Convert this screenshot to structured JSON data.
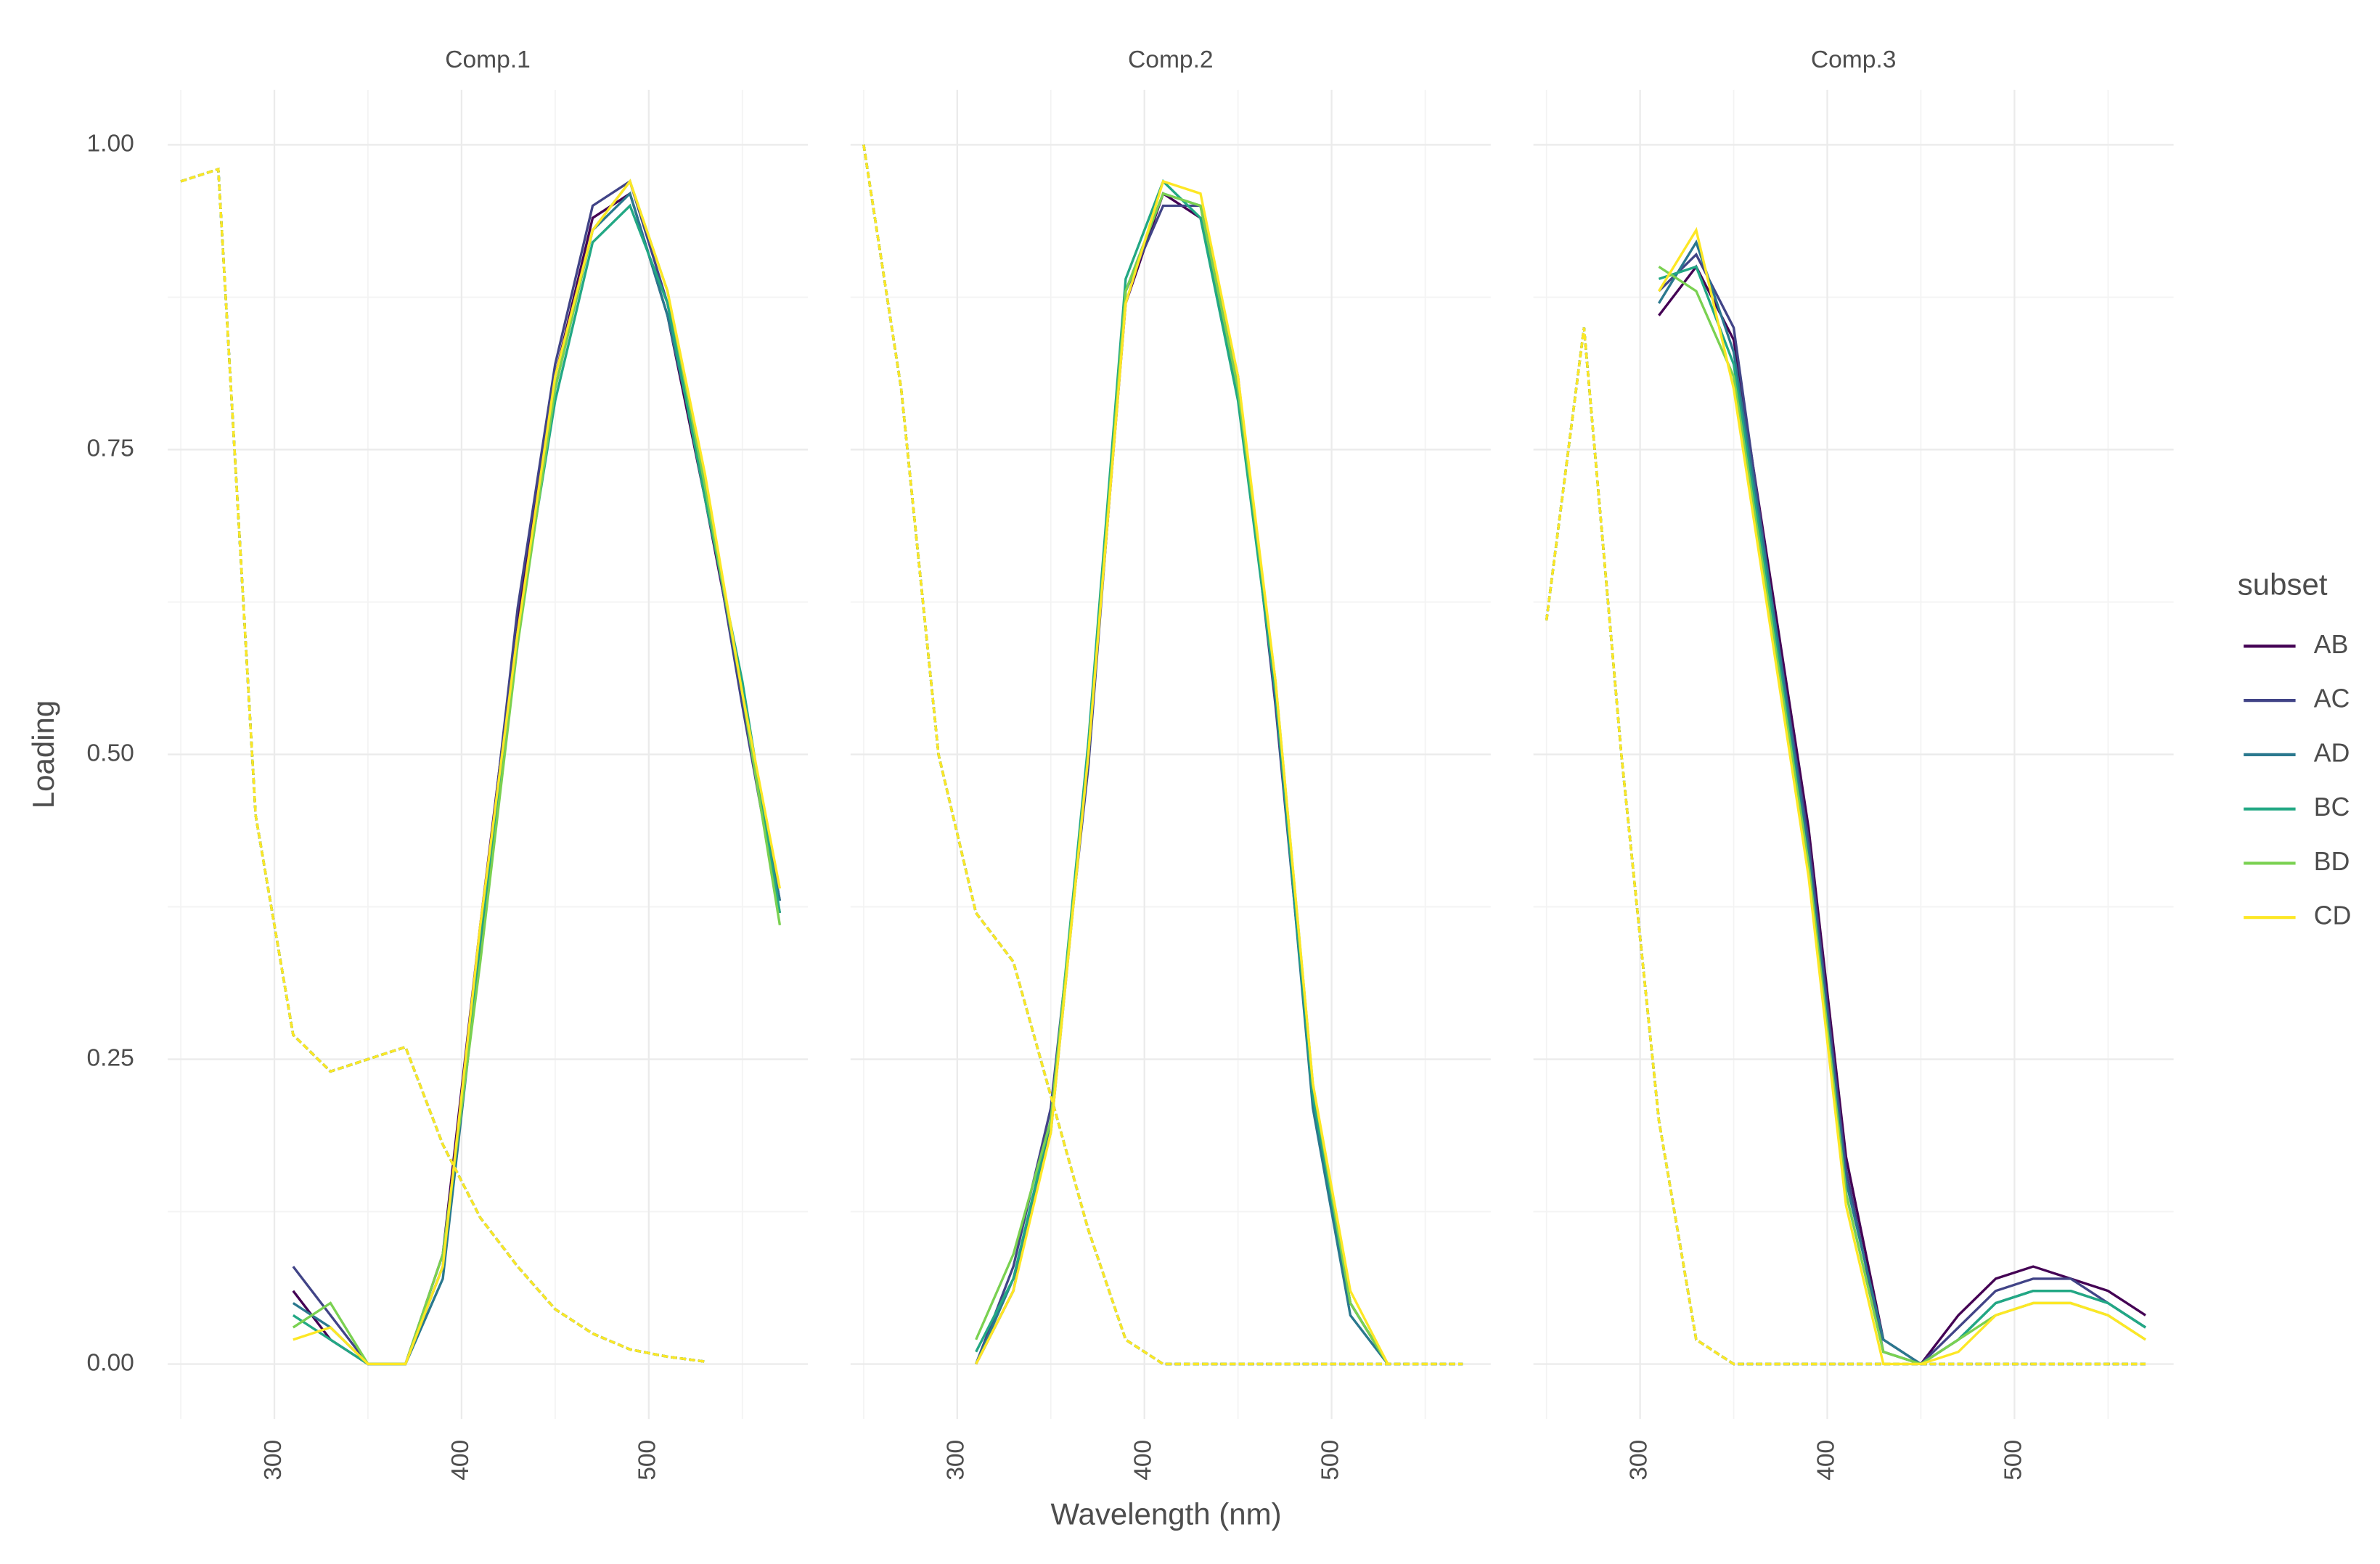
{
  "xlabel": "Wavelength (nm)",
  "ylabel": "Loading",
  "legend_title": "subset",
  "chart_data": [
    {
      "type": "line",
      "title": "Comp.1",
      "x": [
        250,
        270,
        290,
        310,
        330,
        350,
        370,
        390,
        410,
        430,
        450,
        470,
        490,
        510,
        530,
        550,
        570
      ],
      "xlim": [
        243,
        585
      ],
      "xticks": [
        300,
        400,
        500
      ],
      "ylim": [
        -0.045,
        1.045
      ],
      "yticks": [
        {
          "value": 0,
          "label": "0.00"
        },
        {
          "value": 0.25,
          "label": "0.25"
        },
        {
          "value": 0.5,
          "label": "0.50"
        },
        {
          "value": 0.75,
          "label": "0.75"
        },
        {
          "value": 1,
          "label": "1.00"
        }
      ],
      "series": [
        {
          "name": "AB",
          "color": "#440154",
          "values": [
            null,
            null,
            null,
            0.06,
            0.02,
            0,
            0,
            0.09,
            0.36,
            0.61,
            0.81,
            0.94,
            0.96,
            0.86,
            0.71,
            0.55,
            0.38
          ],
          "excitation": [
            0.97,
            0.98,
            0.45,
            0.27,
            0.24,
            0.25,
            0.26,
            0.18,
            0.12,
            0.08,
            0.045,
            0.025,
            0.012,
            0.006,
            0.002,
            null,
            null
          ]
        },
        {
          "name": "AC",
          "color": "#414487",
          "values": [
            null,
            null,
            null,
            0.08,
            0.04,
            0,
            0,
            0.08,
            0.35,
            0.62,
            0.82,
            0.95,
            0.97,
            0.87,
            0.72,
            0.54,
            0.37
          ],
          "excitation": [
            0.97,
            0.98,
            0.45,
            0.27,
            0.24,
            0.25,
            0.26,
            0.18,
            0.12,
            0.08,
            0.045,
            0.025,
            0.012,
            0.006,
            0.002,
            null,
            null
          ]
        },
        {
          "name": "AD",
          "color": "#2A788E",
          "values": [
            null,
            null,
            null,
            0.05,
            0.03,
            0,
            0,
            0.07,
            0.34,
            0.6,
            0.8,
            0.93,
            0.96,
            0.86,
            0.72,
            0.55,
            0.38
          ],
          "excitation": [
            0.97,
            0.98,
            0.45,
            0.27,
            0.24,
            0.25,
            0.26,
            0.18,
            0.12,
            0.08,
            0.045,
            0.025,
            0.012,
            0.006,
            0.002,
            null,
            null
          ]
        },
        {
          "name": "BC",
          "color": "#22A884",
          "values": [
            null,
            null,
            null,
            0.04,
            0.02,
            0,
            0,
            0.08,
            0.35,
            0.6,
            0.79,
            0.92,
            0.95,
            0.87,
            0.71,
            0.56,
            0.37
          ],
          "excitation": [
            0.97,
            0.98,
            0.45,
            0.27,
            0.24,
            0.25,
            0.26,
            0.18,
            0.12,
            0.08,
            0.045,
            0.025,
            0.012,
            0.006,
            0.002,
            null,
            null
          ]
        },
        {
          "name": "BD",
          "color": "#7AD151",
          "values": [
            null,
            null,
            null,
            0.03,
            0.05,
            0,
            0,
            0.09,
            0.33,
            0.59,
            0.8,
            0.93,
            0.97,
            0.88,
            0.72,
            0.55,
            0.36
          ],
          "excitation": [
            0.97,
            0.98,
            0.45,
            0.27,
            0.24,
            0.25,
            0.26,
            0.18,
            0.12,
            0.08,
            0.045,
            0.025,
            0.012,
            0.006,
            0.002,
            null,
            null
          ]
        },
        {
          "name": "CD",
          "color": "#FDE725",
          "values": [
            null,
            null,
            null,
            0.02,
            0.03,
            0,
            0,
            0.08,
            0.36,
            0.6,
            0.81,
            0.93,
            0.97,
            0.88,
            0.73,
            0.55,
            0.39
          ],
          "excitation": [
            0.97,
            0.98,
            0.45,
            0.27,
            0.24,
            0.25,
            0.26,
            0.18,
            0.12,
            0.08,
            0.045,
            0.025,
            0.012,
            0.006,
            0.002,
            null,
            null
          ]
        }
      ]
    },
    {
      "type": "line",
      "title": "Comp.2",
      "x": [
        250,
        270,
        290,
        310,
        330,
        350,
        370,
        390,
        410,
        430,
        450,
        470,
        490,
        510,
        530,
        550,
        570
      ],
      "xlim": [
        243,
        585
      ],
      "xticks": [
        300,
        400,
        500
      ],
      "ylim": [
        -0.045,
        1.045
      ],
      "yticks": [
        {
          "value": 0,
          "label": "0.00"
        },
        {
          "value": 0.25,
          "label": "0.25"
        },
        {
          "value": 0.5,
          "label": "0.50"
        },
        {
          "value": 0.75,
          "label": "0.75"
        },
        {
          "value": 1,
          "label": "1.00"
        }
      ],
      "series": [
        {
          "name": "AB",
          "color": "#440154",
          "values": [
            null,
            null,
            null,
            0,
            0.06,
            0.2,
            0.5,
            0.87,
            0.96,
            0.94,
            0.8,
            0.55,
            0.22,
            0.05,
            0,
            null,
            null
          ],
          "excitation": [
            1,
            0.8,
            0.5,
            0.37,
            0.33,
            0.22,
            0.11,
            0.02,
            0,
            0,
            0,
            0,
            0,
            0,
            0,
            0,
            0
          ]
        },
        {
          "name": "AC",
          "color": "#414487",
          "values": [
            null,
            null,
            null,
            0,
            0.08,
            0.21,
            0.49,
            0.88,
            0.95,
            0.95,
            0.81,
            0.54,
            0.22,
            0.05,
            0,
            null,
            null
          ],
          "excitation": [
            1,
            0.8,
            0.5,
            0.37,
            0.33,
            0.22,
            0.11,
            0.02,
            0,
            0,
            0,
            0,
            0,
            0,
            0,
            0,
            0
          ]
        },
        {
          "name": "AD",
          "color": "#2A788E",
          "values": [
            null,
            null,
            null,
            0,
            0.07,
            0.19,
            0.5,
            0.88,
            0.96,
            0.95,
            0.8,
            0.55,
            0.21,
            0.04,
            0,
            null,
            null
          ],
          "excitation": [
            1,
            0.8,
            0.5,
            0.37,
            0.33,
            0.22,
            0.11,
            0.02,
            0,
            0,
            0,
            0,
            0,
            0,
            0,
            0,
            0
          ]
        },
        {
          "name": "BC",
          "color": "#22A884",
          "values": [
            null,
            null,
            null,
            0.01,
            0.07,
            0.2,
            0.51,
            0.89,
            0.97,
            0.94,
            0.79,
            0.55,
            0.22,
            0.05,
            0,
            null,
            null
          ],
          "excitation": [
            1,
            0.8,
            0.5,
            0.37,
            0.33,
            0.22,
            0.11,
            0.02,
            0,
            0,
            0,
            0,
            0,
            0,
            0,
            0,
            0
          ]
        },
        {
          "name": "BD",
          "color": "#7AD151",
          "values": [
            null,
            null,
            null,
            0.02,
            0.09,
            0.2,
            0.5,
            0.88,
            0.96,
            0.95,
            0.8,
            0.56,
            0.23,
            0.05,
            0,
            null,
            null
          ],
          "excitation": [
            1,
            0.8,
            0.5,
            0.37,
            0.33,
            0.22,
            0.11,
            0.02,
            0,
            0,
            0,
            0,
            0,
            0,
            0,
            0,
            0
          ]
        },
        {
          "name": "CD",
          "color": "#FDE725",
          "values": [
            null,
            null,
            null,
            0,
            0.06,
            0.19,
            0.5,
            0.87,
            0.97,
            0.96,
            0.81,
            0.56,
            0.23,
            0.06,
            0,
            null,
            null
          ],
          "excitation": [
            1,
            0.8,
            0.5,
            0.37,
            0.33,
            0.22,
            0.11,
            0.02,
            0,
            0,
            0,
            0,
            0,
            0,
            0,
            0,
            0
          ]
        }
      ]
    },
    {
      "type": "line",
      "title": "Comp.3",
      "x": [
        250,
        270,
        290,
        310,
        330,
        350,
        370,
        390,
        410,
        430,
        450,
        470,
        490,
        510,
        530,
        550,
        570
      ],
      "xlim": [
        243,
        585
      ],
      "xticks": [
        300,
        400,
        500
      ],
      "ylim": [
        -0.045,
        1.045
      ],
      "yticks": [
        {
          "value": 0,
          "label": "0.00"
        },
        {
          "value": 0.25,
          "label": "0.25"
        },
        {
          "value": 0.5,
          "label": "0.50"
        },
        {
          "value": 0.75,
          "label": "0.75"
        },
        {
          "value": 1,
          "label": "1.00"
        }
      ],
      "series": [
        {
          "name": "AB",
          "color": "#440154",
          "values": [
            null,
            null,
            null,
            0.86,
            0.9,
            0.84,
            0.64,
            0.44,
            0.17,
            0.02,
            0,
            0.04,
            0.07,
            0.08,
            0.07,
            0.06,
            0.04
          ],
          "excitation": [
            0.61,
            0.85,
            0.5,
            0.2,
            0.02,
            0,
            0,
            0,
            0,
            0,
            0,
            0,
            0,
            0,
            0,
            0,
            0
          ]
        },
        {
          "name": "AC",
          "color": "#414487",
          "values": [
            null,
            null,
            null,
            0.88,
            0.91,
            0.85,
            0.63,
            0.43,
            0.16,
            0.01,
            0,
            0.03,
            0.06,
            0.07,
            0.07,
            0.05,
            0.03
          ],
          "excitation": [
            0.61,
            0.85,
            0.5,
            0.2,
            0.02,
            0,
            0,
            0,
            0,
            0,
            0,
            0,
            0,
            0,
            0,
            0,
            0
          ]
        },
        {
          "name": "AD",
          "color": "#2A788E",
          "values": [
            null,
            null,
            null,
            0.87,
            0.92,
            0.83,
            0.63,
            0.42,
            0.15,
            0.02,
            0,
            0.02,
            0.05,
            0.06,
            0.06,
            0.05,
            0.03
          ],
          "excitation": [
            0.61,
            0.85,
            0.5,
            0.2,
            0.02,
            0,
            0,
            0,
            0,
            0,
            0,
            0,
            0,
            0,
            0,
            0,
            0
          ]
        },
        {
          "name": "BC",
          "color": "#22A884",
          "values": [
            null,
            null,
            null,
            0.89,
            0.9,
            0.82,
            0.62,
            0.41,
            0.14,
            0.01,
            0,
            0.02,
            0.05,
            0.06,
            0.06,
            0.05,
            0.03
          ],
          "excitation": [
            0.61,
            0.85,
            0.5,
            0.2,
            0.02,
            0,
            0,
            0,
            0,
            0,
            0,
            0,
            0,
            0,
            0,
            0,
            0
          ]
        },
        {
          "name": "BD",
          "color": "#7AD151",
          "values": [
            null,
            null,
            null,
            0.9,
            0.88,
            0.81,
            0.61,
            0.41,
            0.14,
            0.01,
            0,
            0.02,
            0.04,
            0.05,
            0.05,
            0.04,
            0.02
          ],
          "excitation": [
            0.61,
            0.85,
            0.5,
            0.2,
            0.02,
            0,
            0,
            0,
            0,
            0,
            0,
            0,
            0,
            0,
            0,
            0,
            0
          ]
        },
        {
          "name": "CD",
          "color": "#FDE725",
          "values": [
            null,
            null,
            null,
            0.88,
            0.93,
            0.8,
            0.6,
            0.4,
            0.13,
            0,
            0,
            0.01,
            0.04,
            0.05,
            0.05,
            0.04,
            0.02
          ],
          "excitation": [
            0.61,
            0.85,
            0.5,
            0.2,
            0.02,
            0,
            0,
            0,
            0,
            0,
            0,
            0,
            0,
            0,
            0,
            0,
            0
          ]
        }
      ]
    }
  ]
}
